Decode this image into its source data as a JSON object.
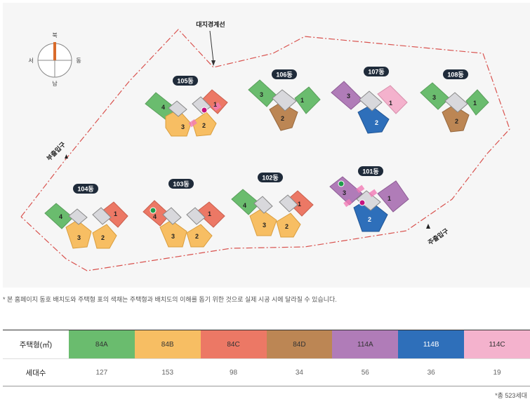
{
  "compass": {
    "north": "북",
    "south": "남",
    "east": "동",
    "west": "서"
  },
  "boundary_label": "대지경계선",
  "entrances": {
    "secondary": "부출입구",
    "main": "주출입구"
  },
  "buildings": [
    {
      "id": "105동",
      "wings": [
        "4",
        "3",
        "2",
        "1"
      ]
    },
    {
      "id": "106동",
      "wings": [
        "3",
        "2",
        "1"
      ]
    },
    {
      "id": "107동",
      "wings": [
        "3",
        "2",
        "1"
      ]
    },
    {
      "id": "108동",
      "wings": [
        "3",
        "2",
        "1"
      ]
    },
    {
      "id": "104동",
      "wings": [
        "4",
        "3",
        "2",
        "1"
      ]
    },
    {
      "id": "103동",
      "wings": [
        "4",
        "3",
        "2",
        "1"
      ]
    },
    {
      "id": "102동",
      "wings": [
        "4",
        "3",
        "2",
        "1"
      ]
    },
    {
      "id": "101동",
      "wings": [
        "3",
        "2",
        "1"
      ]
    }
  ],
  "note": "* 본 홈페이지 동호 배치도와 주택형 표의 색채는 주택형과 배치도의 이해를 돕기 위한 것으로 실제 시공 시에 달라질 수 있습니다.",
  "table": {
    "header_label": "주택형(㎡)",
    "count_label": "세대수",
    "types": [
      {
        "name": "84A",
        "color": "#6abc6e",
        "count": "127"
      },
      {
        "name": "84B",
        "color": "#f7be63",
        "count": "153"
      },
      {
        "name": "84C",
        "color": "#ec7865",
        "count": "98"
      },
      {
        "name": "84D",
        "color": "#bc8654",
        "count": "34"
      },
      {
        "name": "114A",
        "color": "#b07cb8",
        "count": "56"
      },
      {
        "name": "114B",
        "color": "#2e6fba",
        "count": "36"
      },
      {
        "name": "114C",
        "color": "#f4b2cd",
        "count": "19"
      }
    ]
  },
  "total": "*총 523세대"
}
